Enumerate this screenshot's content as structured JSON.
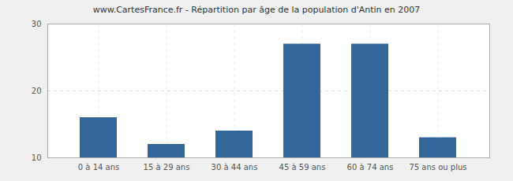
{
  "chart_data": {
    "type": "bar",
    "title": "www.CartesFrance.fr - Répartition par âge de la population d'Antin en 2007",
    "categories": [
      "0 à 14 ans",
      "15 à 29 ans",
      "30 à 44 ans",
      "45 à 59 ans",
      "60 à 74 ans",
      "75 ans ou plus"
    ],
    "values": [
      16,
      12,
      14,
      27,
      27,
      13
    ],
    "color": "#336699",
    "ylim": [
      10,
      30
    ],
    "yticks": [
      10,
      20,
      30
    ],
    "grid": true
  }
}
